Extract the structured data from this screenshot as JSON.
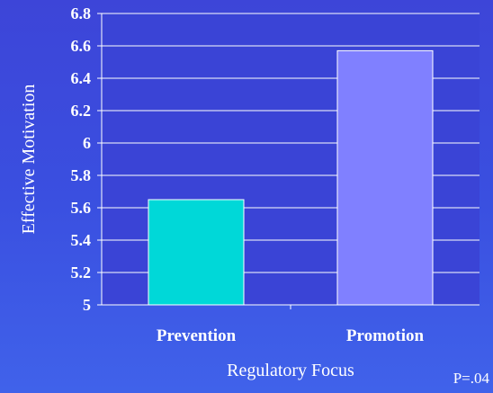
{
  "chart_data": {
    "type": "bar",
    "categories": [
      "Prevention",
      "Promotion"
    ],
    "values": [
      5.65,
      6.57
    ],
    "xlabel": "Regulatory Focus",
    "ylabel": "Effective Motivation",
    "ylim": [
      5,
      6.8
    ],
    "yticks": [
      "5",
      "5.2",
      "5.4",
      "5.6",
      "5.8",
      "6",
      "6.2",
      "6.4",
      "6.6",
      "6.8"
    ],
    "bar_colors": [
      "#00d8d8",
      "#8080ff"
    ],
    "grid": true
  },
  "annotation": "P=.04",
  "colors": {
    "background": "#3b4ddf",
    "plot_background": "#3a44d6",
    "text": "#ffffff"
  }
}
